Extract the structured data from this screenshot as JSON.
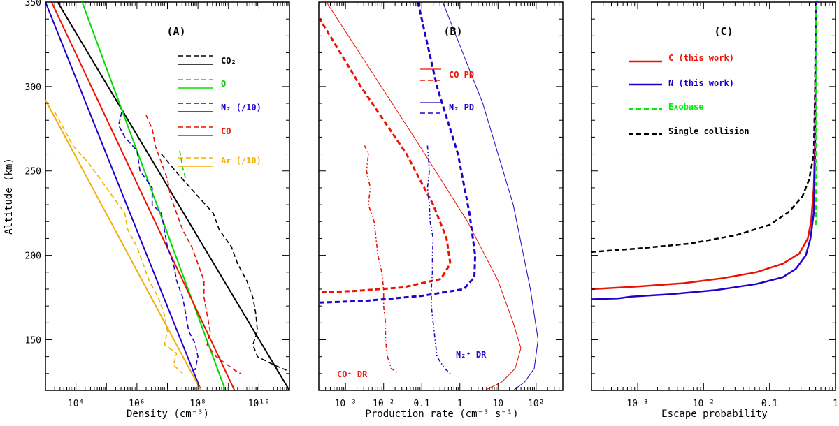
{
  "chart_data": [
    {
      "panel": "A",
      "type": "line",
      "title": "(A)",
      "xlabel": "Density (cm⁻³)",
      "ylabel": "Altitude (km)",
      "xscale": "log",
      "xlim_log10": [
        3,
        11
      ],
      "ylim": [
        120,
        350
      ],
      "xticks": [
        {
          "log": 4,
          "label": "10⁴"
        },
        {
          "log": 6,
          "label": "10⁶"
        },
        {
          "log": 8,
          "label": "10⁸"
        },
        {
          "log": 10,
          "label": "10¹⁰"
        }
      ],
      "yticks": [
        150,
        200,
        250,
        300,
        350
      ],
      "legend": [
        {
          "label": "CO₂",
          "color": "#000000",
          "dashed_above": true
        },
        {
          "label": "O",
          "color": "#00dd00",
          "dashed_above": true
        },
        {
          "label": "N₂ (/10)",
          "color": "#2200cc",
          "dashed_above": true
        },
        {
          "label": "CO",
          "color": "#ee1100",
          "dashed_above": true
        },
        {
          "label": "Ar (/10)",
          "color": "#f4b000",
          "dashed_above": true
        }
      ],
      "series": [
        {
          "name": "CO₂ model",
          "color": "#000000",
          "style": "solid",
          "width": 2,
          "points": [
            [
              11.0,
              120
            ],
            [
              3.4,
              350
            ]
          ]
        },
        {
          "name": "O model",
          "color": "#00dd00",
          "style": "solid",
          "width": 2,
          "points": [
            [
              8.9,
              120
            ],
            [
              4.2,
              350
            ]
          ]
        },
        {
          "name": "N₂ model",
          "color": "#2200cc",
          "style": "solid",
          "width": 2,
          "points": [
            [
              8.1,
              120
            ],
            [
              3.0,
              350
            ]
          ]
        },
        {
          "name": "CO model",
          "color": "#ee1100",
          "style": "solid",
          "width": 2,
          "points": [
            [
              9.2,
              120
            ],
            [
              3.2,
              350
            ]
          ]
        },
        {
          "name": "Ar model",
          "color": "#f4b000",
          "style": "solid",
          "width": 2,
          "points": [
            [
              8.1,
              120
            ],
            [
              3.0,
              292
            ]
          ]
        },
        {
          "name": "CO₂ data",
          "color": "#000000",
          "style": "dashed",
          "width": 1.6,
          "points": [
            [
              6.8,
              260
            ],
            [
              7.4,
              247
            ],
            [
              8.0,
              235
            ],
            [
              8.5,
              225
            ],
            [
              8.7,
              215
            ],
            [
              9.1,
              205
            ],
            [
              9.3,
              195
            ],
            [
              9.6,
              185
            ],
            [
              9.8,
              175
            ],
            [
              9.9,
              165
            ],
            [
              9.95,
              155
            ],
            [
              9.8,
              147
            ],
            [
              9.95,
              140
            ],
            [
              10.5,
              135
            ],
            [
              10.9,
              132
            ]
          ]
        },
        {
          "name": "O data",
          "color": "#00dd00",
          "style": "dashed",
          "width": 1.6,
          "points": [
            [
              7.4,
              262
            ],
            [
              7.5,
              252
            ],
            [
              7.6,
              245
            ]
          ]
        },
        {
          "name": "N₂ data",
          "color": "#2200cc",
          "style": "dashed",
          "width": 1.6,
          "points": [
            [
              5.5,
              285
            ],
            [
              5.4,
              277
            ],
            [
              5.6,
              270
            ],
            [
              6.0,
              262
            ],
            [
              6.1,
              250
            ],
            [
              6.3,
              245
            ],
            [
              6.5,
              240
            ],
            [
              6.5,
              230
            ],
            [
              6.8,
              225
            ],
            [
              6.9,
              215
            ],
            [
              7.0,
              205
            ],
            [
              7.2,
              195
            ],
            [
              7.3,
              185
            ],
            [
              7.5,
              175
            ],
            [
              7.6,
              165
            ],
            [
              7.7,
              155
            ],
            [
              7.9,
              148
            ],
            [
              8.0,
              140
            ],
            [
              7.9,
              132
            ]
          ]
        },
        {
          "name": "CO data",
          "color": "#ee1100",
          "style": "dashed",
          "width": 1.6,
          "points": [
            [
              6.3,
              283
            ],
            [
              6.5,
              275
            ],
            [
              6.6,
              265
            ],
            [
              6.8,
              255
            ],
            [
              7.0,
              245
            ],
            [
              7.1,
              235
            ],
            [
              7.3,
              225
            ],
            [
              7.5,
              215
            ],
            [
              7.8,
              205
            ],
            [
              8.0,
              195
            ],
            [
              8.2,
              185
            ],
            [
              8.2,
              175
            ],
            [
              8.3,
              165
            ],
            [
              8.4,
              155
            ],
            [
              8.3,
              147
            ],
            [
              8.6,
              140
            ],
            [
              8.9,
              136
            ],
            [
              9.2,
              132
            ],
            [
              9.4,
              130
            ]
          ]
        },
        {
          "name": "Ar data",
          "color": "#f4b000",
          "style": "dashed",
          "width": 1.6,
          "points": [
            [
              3.3,
              285
            ],
            [
              3.6,
              275
            ],
            [
              3.9,
              265
            ],
            [
              4.4,
              255
            ],
            [
              4.8,
              245
            ],
            [
              5.2,
              235
            ],
            [
              5.6,
              225
            ],
            [
              5.7,
              215
            ],
            [
              6.0,
              205
            ],
            [
              6.2,
              195
            ],
            [
              6.4,
              185
            ],
            [
              6.7,
              175
            ],
            [
              6.9,
              165
            ],
            [
              7.0,
              155
            ],
            [
              6.9,
              147
            ],
            [
              7.3,
              142
            ],
            [
              7.2,
              135
            ],
            [
              7.5,
              130
            ]
          ]
        }
      ]
    },
    {
      "panel": "B",
      "type": "line",
      "title": "(B)",
      "xlabel": "Production rate (cm⁻³ s⁻¹)",
      "xscale": "log",
      "xlim_log10": [
        -3.7,
        2.7
      ],
      "ylim": [
        120,
        350
      ],
      "xticks": [
        {
          "log": -3,
          "label": "10⁻³"
        },
        {
          "log": -2,
          "label": "10⁻²"
        },
        {
          "log": -1,
          "label": "0.1"
        },
        {
          "log": 0,
          "label": "1"
        },
        {
          "log": 1,
          "label": "10"
        },
        {
          "log": 2,
          "label": "10²"
        }
      ],
      "legend": [
        {
          "label": "CO PD",
          "color": "#ee1100"
        },
        {
          "label": "N₂ PD",
          "color": "#2200cc"
        }
      ],
      "annotations": [
        {
          "text": "CO⁺ DR",
          "color": "#ee1100"
        },
        {
          "text": "N₂⁺ DR",
          "color": "#2200cc"
        }
      ],
      "series": [
        {
          "name": "CO PD (thin)",
          "color": "#ee1100",
          "style": "solid",
          "width": 1,
          "points": [
            [
              -3.5,
              350
            ],
            [
              -1.2,
              270
            ],
            [
              0.2,
              220
            ],
            [
              1.0,
              185
            ],
            [
              1.4,
              160
            ],
            [
              1.6,
              145
            ],
            [
              1.45,
              133
            ],
            [
              1.1,
              125
            ],
            [
              0.65,
              120
            ]
          ]
        },
        {
          "name": "N₂ PD (thin)",
          "color": "#2200cc",
          "style": "solid",
          "width": 1,
          "points": [
            [
              -0.45,
              350
            ],
            [
              0.6,
              290
            ],
            [
              1.4,
              230
            ],
            [
              1.85,
              180
            ],
            [
              2.05,
              150
            ],
            [
              1.95,
              133
            ],
            [
              1.7,
              125
            ],
            [
              1.4,
              120
            ]
          ]
        },
        {
          "name": "CO PD (thick)",
          "color": "#ee1100",
          "style": "dashed",
          "width": 3,
          "points": [
            [
              -3.7,
              341
            ],
            [
              -2.6,
              300
            ],
            [
              -1.4,
              260
            ],
            [
              -0.7,
              230
            ],
            [
              -0.35,
              210
            ],
            [
              -0.25,
              195
            ],
            [
              -0.5,
              186
            ],
            [
              -1.5,
              181
            ],
            [
              -2.7,
              179
            ],
            [
              -3.7,
              178
            ]
          ]
        },
        {
          "name": "N₂ PD (thick)",
          "color": "#2200cc",
          "style": "dashed",
          "width": 3,
          "points": [
            [
              -1.1,
              350
            ],
            [
              -0.6,
              300
            ],
            [
              -0.05,
              260
            ],
            [
              0.25,
              225
            ],
            [
              0.4,
              200
            ],
            [
              0.38,
              187
            ],
            [
              0.1,
              180
            ],
            [
              -1.0,
              176
            ],
            [
              -2.5,
              173
            ],
            [
              -3.7,
              172
            ]
          ]
        },
        {
          "name": "CO⁺ DR",
          "color": "#ee1100",
          "style": "dashdotdot",
          "width": 1.6,
          "points": [
            [
              -2.5,
              265
            ],
            [
              -2.4,
              260
            ],
            [
              -2.45,
              250
            ],
            [
              -2.35,
              240
            ],
            [
              -2.4,
              230
            ],
            [
              -2.25,
              220
            ],
            [
              -2.2,
              210
            ],
            [
              -2.15,
              200
            ],
            [
              -2.05,
              190
            ],
            [
              -2.0,
              180
            ],
            [
              -2.0,
              170
            ],
            [
              -1.95,
              160
            ],
            [
              -1.95,
              150
            ],
            [
              -1.9,
              140
            ],
            [
              -1.8,
              133
            ],
            [
              -1.6,
              130
            ]
          ]
        },
        {
          "name": "N₂⁺ DR",
          "color": "#2200cc",
          "style": "dashdotdot",
          "width": 1.6,
          "points": [
            [
              -0.85,
              265
            ],
            [
              -0.8,
              250
            ],
            [
              -0.85,
              240
            ],
            [
              -0.8,
              230
            ],
            [
              -0.78,
              220
            ],
            [
              -0.7,
              210
            ],
            [
              -0.72,
              200
            ],
            [
              -0.72,
              190
            ],
            [
              -0.75,
              180
            ],
            [
              -0.75,
              170
            ],
            [
              -0.7,
              160
            ],
            [
              -0.65,
              150
            ],
            [
              -0.6,
              140
            ],
            [
              -0.4,
              133
            ],
            [
              -0.25,
              130
            ]
          ]
        }
      ]
    },
    {
      "panel": "C",
      "type": "line",
      "title": "(C)",
      "xlabel": "Escape probability",
      "xscale": "log",
      "xlim_log10": [
        -3.7,
        0
      ],
      "ylim": [
        120,
        350
      ],
      "xticks": [
        {
          "log": -3,
          "label": "10⁻³"
        },
        {
          "log": -2,
          "label": "10⁻²"
        },
        {
          "log": -1,
          "label": "0.1"
        },
        {
          "log": 0,
          "label": "1"
        }
      ],
      "legend": [
        {
          "label": "C (this work)",
          "color": "#ee1100",
          "style": "solid"
        },
        {
          "label": "N (this work)",
          "color": "#2200cc",
          "style": "solid"
        },
        {
          "label": "Exobase",
          "color": "#00ee00",
          "style": "dashed"
        },
        {
          "label": "Single collision",
          "color": "#000000",
          "style": "dashed"
        }
      ],
      "series": [
        {
          "name": "Single collision",
          "color": "#000000",
          "style": "dashed",
          "width": 2.5,
          "points": [
            [
              -3.7,
              202
            ],
            [
              -3.0,
              204
            ],
            [
              -2.2,
              207
            ],
            [
              -1.5,
              212
            ],
            [
              -1.0,
              218
            ],
            [
              -0.7,
              226
            ],
            [
              -0.5,
              235
            ],
            [
              -0.4,
              245
            ],
            [
              -0.33,
              260
            ],
            [
              -0.31,
              300
            ],
            [
              -0.3,
              350
            ]
          ]
        },
        {
          "name": "C (this work)",
          "color": "#ee1100",
          "style": "solid",
          "width": 2.5,
          "points": [
            [
              -3.7,
              180
            ],
            [
              -3.0,
              181.5
            ],
            [
              -2.3,
              183.5
            ],
            [
              -1.7,
              186.5
            ],
            [
              -1.2,
              190
            ],
            [
              -0.8,
              195
            ],
            [
              -0.55,
              201
            ],
            [
              -0.42,
              210
            ],
            [
              -0.37,
              220
            ],
            [
              -0.33,
              240
            ],
            [
              -0.31,
              270
            ],
            [
              -0.3,
              350
            ]
          ]
        },
        {
          "name": "N (this work)",
          "color": "#2200cc",
          "style": "solid",
          "width": 2.5,
          "points": [
            [
              -3.7,
              174
            ],
            [
              -3.3,
              174.5
            ],
            [
              -3.1,
              175.5
            ],
            [
              -2.5,
              177
            ],
            [
              -1.8,
              179.5
            ],
            [
              -1.2,
              183
            ],
            [
              -0.8,
              187
            ],
            [
              -0.6,
              192
            ],
            [
              -0.45,
              200
            ],
            [
              -0.38,
              210
            ],
            [
              -0.33,
              225
            ],
            [
              -0.31,
              260
            ],
            [
              -0.3,
              350
            ]
          ]
        },
        {
          "name": "Exobase",
          "color": "#00ee00",
          "style": "dashed",
          "width": 3,
          "points": [
            [
              -0.3,
              218
            ],
            [
              -0.3,
              350
            ]
          ]
        }
      ]
    }
  ]
}
